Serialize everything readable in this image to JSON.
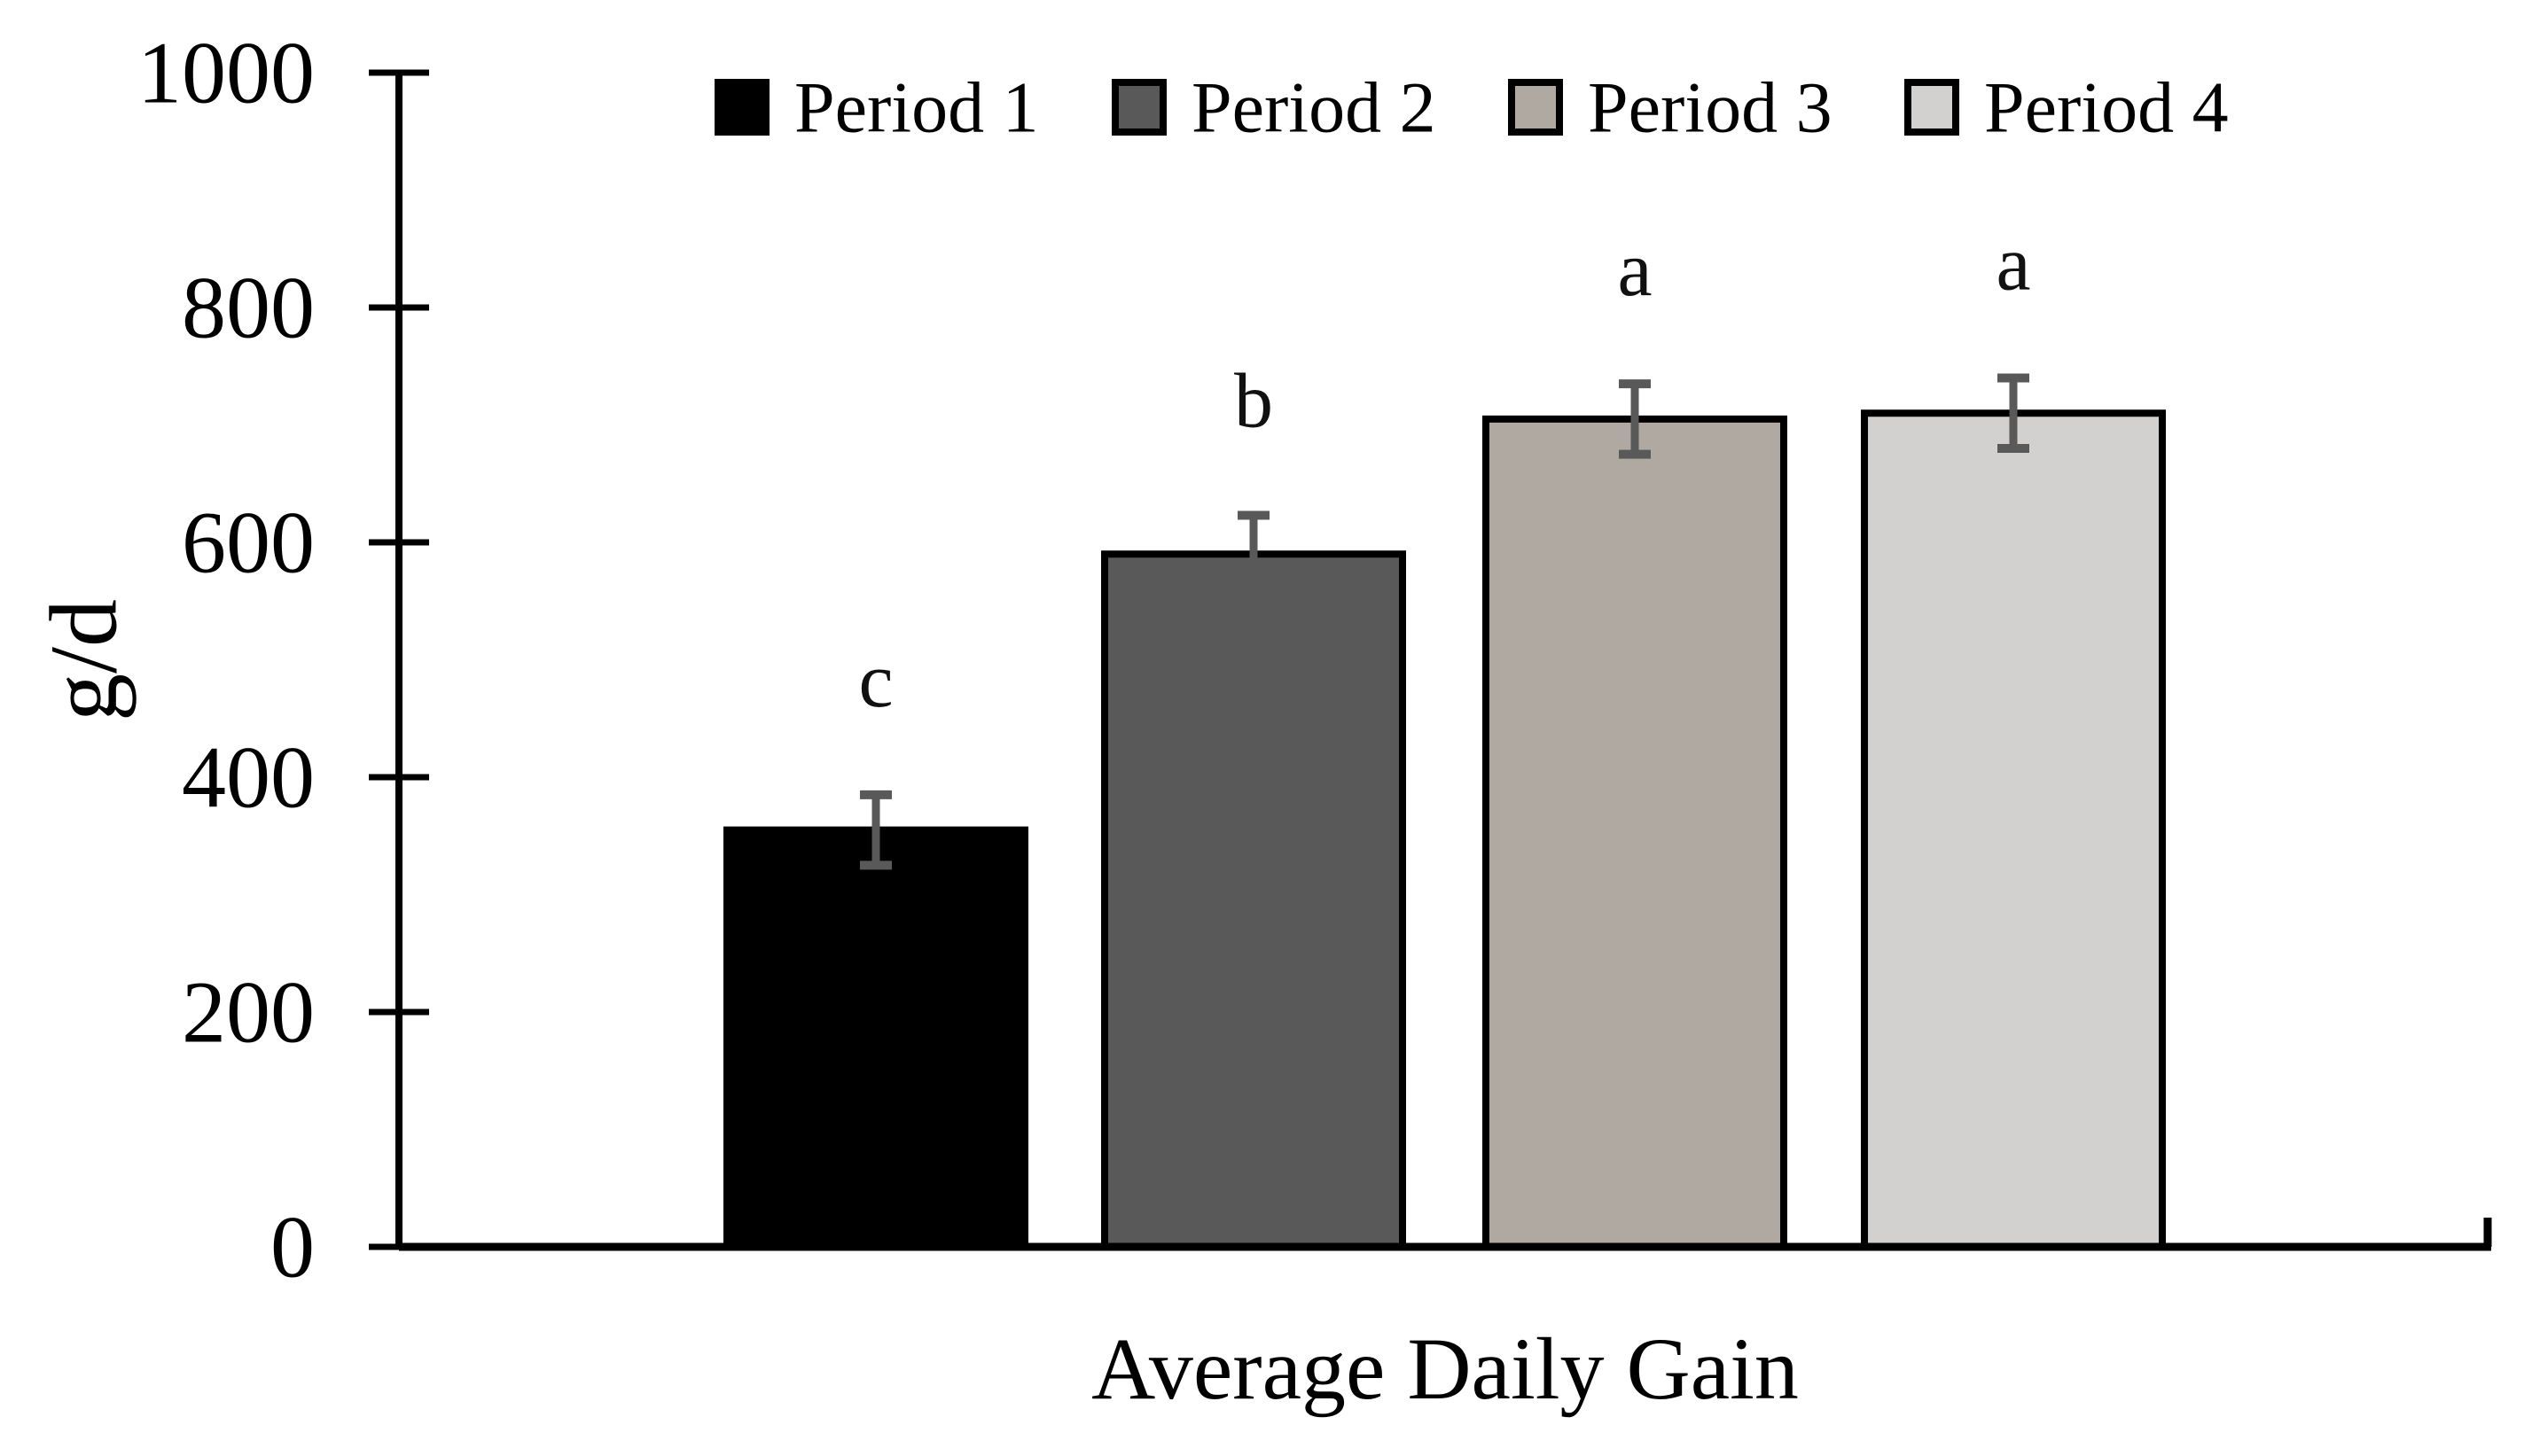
{
  "figure": {
    "x_title": "Average Daily Gain",
    "y_title": "g/d"
  },
  "chart_data": {
    "type": "bar",
    "title": "",
    "xlabel": "Average Daily Gain",
    "ylabel": "g/d",
    "ylim": [
      0,
      1000
    ],
    "yticks": [
      0,
      200,
      400,
      600,
      800,
      1000
    ],
    "grid": false,
    "legend_position": "top",
    "categories": [
      "Period 1",
      "Period 2",
      "Period 3",
      "Period 4"
    ],
    "series": [
      {
        "name": "Period 1",
        "value": 355,
        "error": 30,
        "sig_letter": "c",
        "color": "#000000"
      },
      {
        "name": "Period 2",
        "value": 590,
        "error": 33,
        "sig_letter": "b",
        "color": "#595959"
      },
      {
        "name": "Period 3",
        "value": 705,
        "error": 30,
        "sig_letter": "a",
        "color": "#b0a9a2"
      },
      {
        "name": "Period 4",
        "value": 710,
        "error": 30,
        "sig_letter": "a",
        "color": "#d3d1d0"
      }
    ]
  },
  "colors": {
    "axis": "#000000",
    "bar_border": "#000000",
    "error_bar": "#595959",
    "background": "#ffffff",
    "text": "#000000"
  }
}
